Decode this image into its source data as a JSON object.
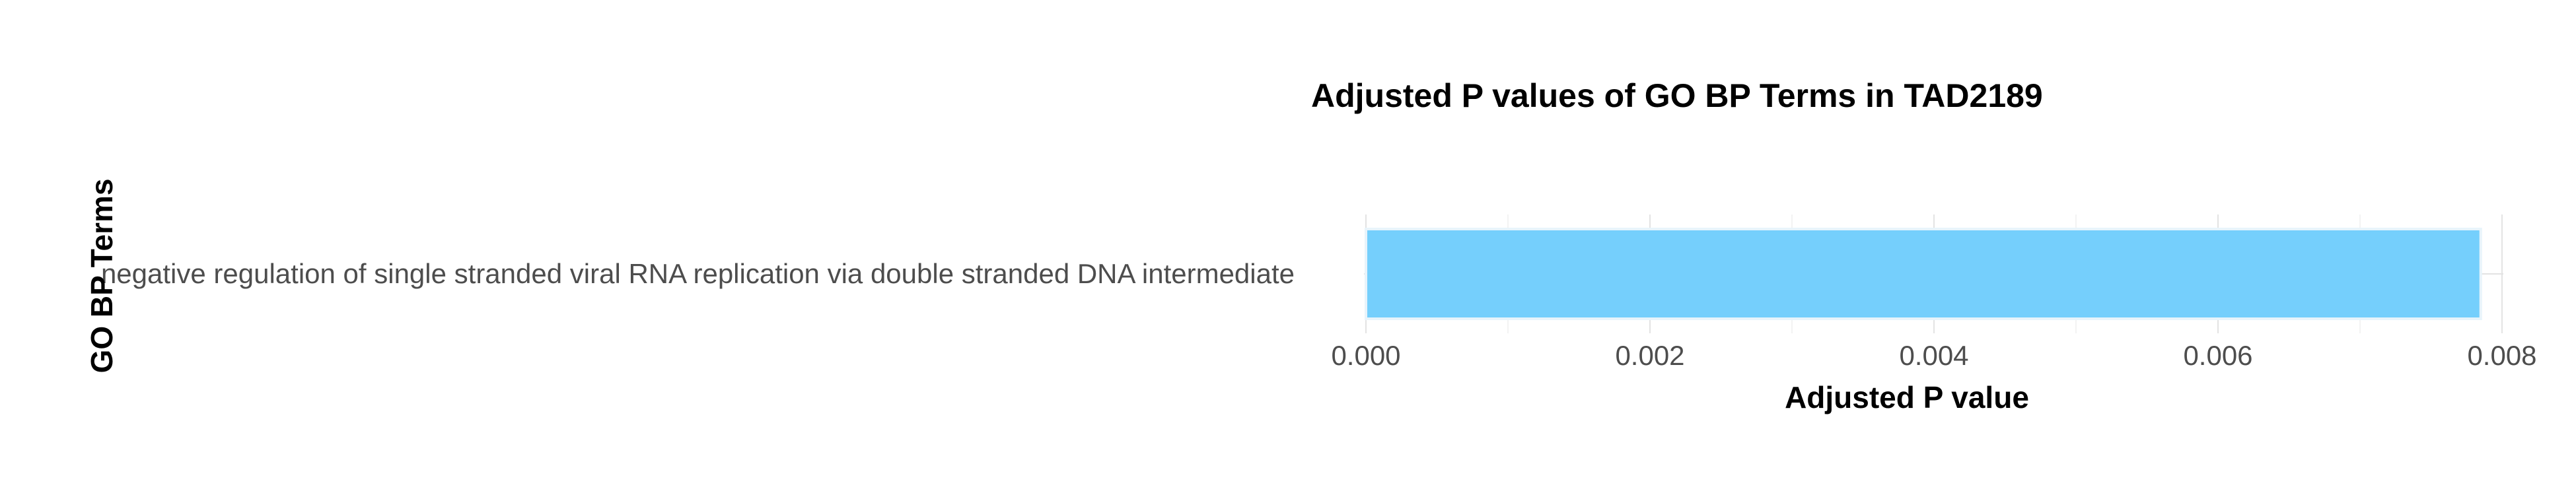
{
  "chart_data": {
    "type": "bar",
    "orientation": "horizontal",
    "title": "Adjusted P values of GO BP Terms in TAD2189",
    "xlabel": "Adjusted P value",
    "ylabel": "GO BP Terms",
    "categories": [
      "negative regulation of single stranded viral RNA replication via double stranded DNA intermediate"
    ],
    "values": [
      0.00785
    ],
    "xlim": [
      0,
      0.0082
    ],
    "xticks": [
      0.0,
      0.002,
      0.004,
      0.006,
      0.008
    ],
    "xtick_labels": [
      "0.000",
      "0.002",
      "0.004",
      "0.006",
      "0.008"
    ],
    "grid": true,
    "bar_color": "#75CFFC",
    "bar_edge_color": "#e8f4fb"
  }
}
